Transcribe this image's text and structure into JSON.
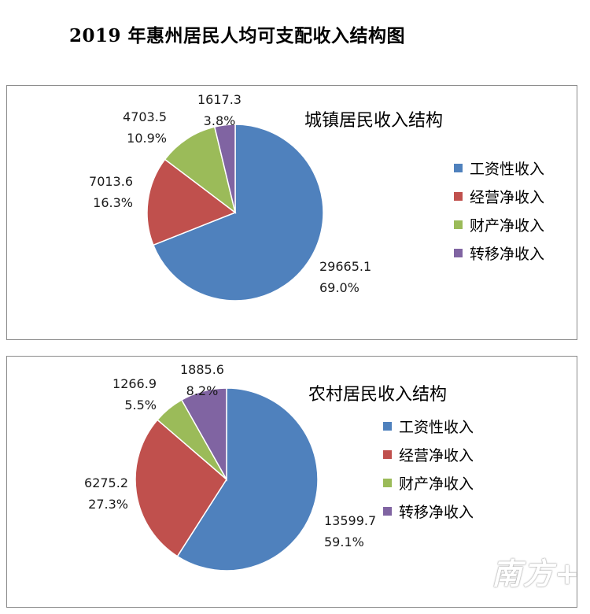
{
  "page_title": "2019 年惠州居民人均可支配收入结构图",
  "watermark": "南方+",
  "colors": {
    "wage": "#4f81bd",
    "business": "#c0504d",
    "property": "#9bbb59",
    "transfer": "#8064a2"
  },
  "chart_data": [
    {
      "type": "pie",
      "title": "城镇居民收入结构",
      "legend_position": "right",
      "categories": [
        "工资性收入",
        "经营净收入",
        "财产净收入",
        "转移净收入"
      ],
      "values": [
        29665.1,
        7013.6,
        4703.5,
        1617.3
      ],
      "value_labels": [
        "29665.1",
        "7013.6",
        "4703.5",
        "1617.3"
      ],
      "percent_labels": [
        "69.0%",
        "16.3%",
        "10.9%",
        "3.8%"
      ]
    },
    {
      "type": "pie",
      "title": "农村居民收入结构",
      "legend_position": "right",
      "categories": [
        "工资性收入",
        "经营净收入",
        "财产净收入",
        "转移净收入"
      ],
      "values": [
        13599.7,
        6275.2,
        1266.9,
        1885.6
      ],
      "value_labels": [
        "13599.7",
        "6275.2",
        "1266.9",
        "1885.6"
      ],
      "percent_labels": [
        "59.1%",
        "27.3%",
        "5.5%",
        "8.2%"
      ]
    }
  ]
}
